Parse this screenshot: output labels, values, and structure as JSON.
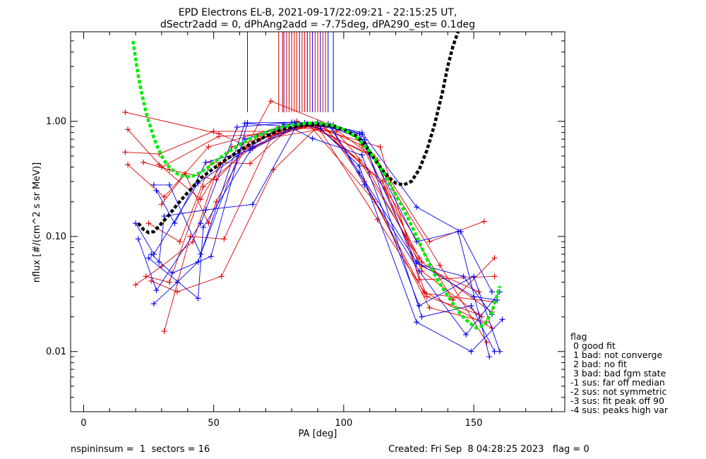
{
  "chart_data": {
    "type": "scatter",
    "title_line1": "EPD Electrons EL-B, 2021-09-17/22:09:21 - 22:15:25 UT,",
    "title_line2": "dSectr2add = 0, dPhAng2add = -7.75deg, dPA290_est=   0.1deg",
    "xlabel": "PA [deg]",
    "ylabel": "nflux [#/(cm^2 s sr MeV)]",
    "xlim": [
      -5,
      185
    ],
    "ylim": [
      0.003,
      6
    ],
    "yscale": "log",
    "x_ticks": [
      0,
      50,
      100,
      150
    ],
    "x_tick_labels": [
      "0",
      "50",
      "100",
      "150"
    ],
    "y_ticks": [
      0.01,
      0.1,
      1.0
    ],
    "y_tick_labels": [
      "0.01",
      "0.10",
      "1.00"
    ],
    "colors": {
      "red": "#dd0000",
      "blue": "#0000ee",
      "green": "#00ee00",
      "black": "#000000"
    },
    "vlines": {
      "ymin": 1.2,
      "blue_x": [
        63,
        77,
        83,
        86,
        88,
        91,
        94,
        96
      ],
      "red_x": [
        75,
        76.5,
        78,
        79,
        80,
        81,
        82,
        84,
        85,
        87,
        89,
        90,
        92,
        93
      ]
    },
    "red_series": [
      [
        [
          16,
          1.2
        ],
        [
          52,
          0.78
        ],
        [
          65,
          0.58
        ],
        [
          76,
          0.83
        ],
        [
          88,
          0.95
        ],
        [
          107,
          0.62
        ],
        [
          129,
          0.065
        ]
      ],
      [
        [
          17,
          0.85
        ],
        [
          30,
          0.4
        ],
        [
          52,
          0.74
        ],
        [
          75,
          0.78
        ],
        [
          89,
          0.92
        ],
        [
          106,
          0.46
        ],
        [
          130,
          0.06
        ],
        [
          157,
          0.022
        ]
      ],
      [
        [
          16,
          0.54
        ],
        [
          29,
          0.52
        ],
        [
          50,
          0.82
        ],
        [
          74,
          0.82
        ],
        [
          91,
          0.95
        ],
        [
          110,
          0.36
        ],
        [
          130,
          0.055
        ],
        [
          152,
          0.033
        ]
      ],
      [
        [
          17,
          0.42
        ],
        [
          31,
          0.22
        ],
        [
          48,
          0.6
        ],
        [
          75,
          0.88
        ],
        [
          93,
          0.9
        ],
        [
          108,
          0.3
        ],
        [
          131,
          0.032
        ],
        [
          158,
          0.027
        ]
      ],
      [
        [
          23,
          0.44
        ],
        [
          33,
          0.38
        ],
        [
          51,
          0.31
        ],
        [
          67,
          0.74
        ],
        [
          86,
          0.95
        ],
        [
          112,
          0.48
        ],
        [
          130,
          0.05
        ],
        [
          153,
          0.02
        ]
      ],
      [
        [
          20,
          0.038
        ],
        [
          30,
          0.055
        ],
        [
          42,
          0.09
        ],
        [
          52,
          0.42
        ],
        [
          68,
          0.7
        ],
        [
          87,
          0.92
        ],
        [
          112,
          0.2
        ],
        [
          133,
          0.024
        ],
        [
          155,
          0.018
        ]
      ],
      [
        [
          24,
          0.045
        ],
        [
          33,
          0.04
        ],
        [
          46,
          0.27
        ],
        [
          64,
          0.58
        ],
        [
          85,
          0.93
        ],
        [
          114,
          0.6
        ],
        [
          129,
          0.042
        ],
        [
          158,
          0.045
        ]
      ],
      [
        [
          26,
          0.041
        ],
        [
          36,
          0.033
        ],
        [
          53,
          0.045
        ],
        [
          73,
          0.38
        ],
        [
          90,
          0.9
        ],
        [
          113,
          0.14
        ],
        [
          131,
          0.033
        ],
        [
          157,
          0.016
        ]
      ],
      [
        [
          31,
          0.015
        ],
        [
          41,
          0.1
        ],
        [
          54,
          0.095
        ],
        [
          72,
          0.72
        ],
        [
          91,
          0.85
        ],
        [
          115,
          0.3
        ],
        [
          132,
          0.03
        ],
        [
          152,
          0.021
        ]
      ],
      [
        [
          30,
          0.19
        ],
        [
          39,
          0.35
        ],
        [
          48,
          0.13
        ],
        [
          51,
          0.2
        ],
        [
          72,
          1.5
        ],
        [
          94,
          0.95
        ],
        [
          113,
          0.46
        ],
        [
          133,
          0.09
        ],
        [
          154,
          0.135
        ]
      ],
      [
        [
          25,
          0.13
        ],
        [
          37,
          0.09
        ],
        [
          49,
          0.44
        ],
        [
          64,
          0.43
        ],
        [
          82,
          1.0
        ],
        [
          111,
          0.51
        ],
        [
          137,
          0.056
        ],
        [
          155,
          0.012
        ]
      ],
      [
        [
          29,
          0.42
        ],
        [
          45,
          0.21
        ],
        [
          57,
          0.6
        ],
        [
          82,
          0.88
        ],
        [
          97,
          0.82
        ],
        [
          116,
          0.26
        ],
        [
          142,
          0.028
        ],
        [
          158,
          0.065
        ]
      ]
    ],
    "blue_series": [
      [
        [
          20,
          0.13
        ],
        [
          27,
          0.07
        ],
        [
          44,
          0.29
        ],
        [
          59,
          0.5
        ],
        [
          77,
          0.94
        ],
        [
          90,
          0.97
        ],
        [
          107,
          0.8
        ],
        [
          128,
          0.18
        ],
        [
          145,
          0.11
        ],
        [
          157,
          0.033
        ]
      ],
      [
        [
          21,
          0.095
        ],
        [
          28,
          0.034
        ],
        [
          45,
          0.13
        ],
        [
          59,
          0.89
        ],
        [
          80,
          0.98
        ],
        [
          91,
          0.87
        ],
        [
          106,
          0.41
        ],
        [
          128,
          0.018
        ],
        [
          149,
          0.01
        ],
        [
          161,
          0.019
        ]
      ],
      [
        [
          27,
          0.28
        ],
        [
          33,
          0.28
        ],
        [
          45,
          0.07
        ],
        [
          62,
          0.7
        ],
        [
          80,
          0.95
        ],
        [
          96,
          0.93
        ],
        [
          107,
          0.77
        ],
        [
          128,
          0.09
        ],
        [
          144,
          0.11
        ],
        [
          156,
          0.009
        ]
      ],
      [
        [
          28,
          0.25
        ],
        [
          35,
          0.13
        ],
        [
          47,
          0.44
        ],
        [
          64,
          0.56
        ],
        [
          85,
          0.97
        ],
        [
          106,
          0.78
        ],
        [
          128,
          0.058
        ],
        [
          146,
          0.045
        ],
        [
          157,
          0.021
        ]
      ],
      [
        [
          27,
          0.026
        ],
        [
          36,
          0.04
        ],
        [
          44,
          0.06
        ],
        [
          62,
          0.96
        ],
        [
          79,
          0.9
        ],
        [
          88,
          0.71
        ],
        [
          107,
          0.51
        ],
        [
          129,
          0.025
        ],
        [
          150,
          0.045
        ],
        [
          160,
          0.01
        ]
      ],
      [
        [
          26,
          0.07
        ],
        [
          34,
          0.048
        ],
        [
          49,
          0.067
        ],
        [
          63,
          0.97
        ],
        [
          81,
          0.98
        ],
        [
          90,
          0.98
        ],
        [
          108,
          0.69
        ],
        [
          130,
          0.02
        ],
        [
          149,
          0.025
        ],
        [
          158,
          0.01
        ]
      ],
      [
        [
          29,
          0.06
        ],
        [
          31,
          0.15
        ],
        [
          47,
          0.17
        ],
        [
          65,
          0.19
        ],
        [
          82,
          0.93
        ],
        [
          94,
          0.95
        ],
        [
          106,
          0.36
        ],
        [
          128,
          0.06
        ],
        [
          150,
          0.03
        ],
        [
          159,
          0.028
        ]
      ],
      [
        [
          25,
          0.065
        ],
        [
          44,
          0.029
        ],
        [
          46,
          0.12
        ],
        [
          65,
          0.6
        ],
        [
          83,
          0.94
        ],
        [
          95,
          0.92
        ],
        [
          108,
          0.28
        ],
        [
          129,
          0.05
        ],
        [
          147,
          0.014
        ],
        [
          160,
          0.033
        ]
      ]
    ],
    "green_fit": {
      "x": [
        19,
        20,
        21,
        22,
        23,
        24,
        25,
        26,
        27,
        28,
        29,
        30,
        31,
        32,
        34,
        36,
        38,
        40,
        42,
        45,
        48,
        50,
        55,
        60,
        65,
        70,
        75,
        80,
        85,
        90,
        95,
        100,
        105,
        110,
        115,
        120,
        125,
        130,
        133,
        136,
        139,
        142,
        145,
        148,
        151,
        154,
        157,
        160
      ],
      "y": [
        5.0,
        3.5,
        2.5,
        1.9,
        1.5,
        1.2,
        1.0,
        0.85,
        0.72,
        0.63,
        0.56,
        0.5,
        0.46,
        0.42,
        0.38,
        0.35,
        0.335,
        0.33,
        0.335,
        0.36,
        0.4,
        0.44,
        0.53,
        0.63,
        0.72,
        0.8,
        0.88,
        0.93,
        0.96,
        0.97,
        0.93,
        0.85,
        0.72,
        0.55,
        0.37,
        0.23,
        0.14,
        0.08,
        0.057,
        0.042,
        0.033,
        0.026,
        0.021,
        0.018,
        0.016,
        0.017,
        0.022,
        0.037
      ]
    },
    "black_fit": {
      "x": [
        21,
        23,
        25,
        27,
        30,
        33,
        36,
        40,
        45,
        50,
        55,
        60,
        65,
        70,
        75,
        80,
        85,
        90,
        95,
        100,
        105,
        108,
        111,
        114,
        117,
        120,
        123,
        126,
        129,
        132,
        135,
        138,
        140,
        142,
        144
      ],
      "y": [
        0.13,
        0.115,
        0.108,
        0.11,
        0.13,
        0.155,
        0.19,
        0.24,
        0.32,
        0.39,
        0.47,
        0.56,
        0.65,
        0.74,
        0.83,
        0.89,
        0.93,
        0.94,
        0.92,
        0.85,
        0.74,
        0.63,
        0.5,
        0.4,
        0.33,
        0.29,
        0.28,
        0.3,
        0.38,
        0.56,
        0.95,
        1.8,
        3.0,
        4.5,
        6.5
      ]
    }
  },
  "legend": {
    "title": "flag",
    "items": [
      " 0 good fit",
      " 1 bad: not converge",
      " 2 bad: no fit",
      " 3 bad: bad fgm state",
      "-1 sus: far off median",
      "-2 sus: not symmetric",
      "-3 sus: fit peak off 90",
      "-4 sus: peaks high var"
    ]
  },
  "footer": {
    "left": "nspininsum =  1  sectors = 16",
    "right": "Created: Fri Sep  8 04:28:25 2023   flag = 0"
  }
}
